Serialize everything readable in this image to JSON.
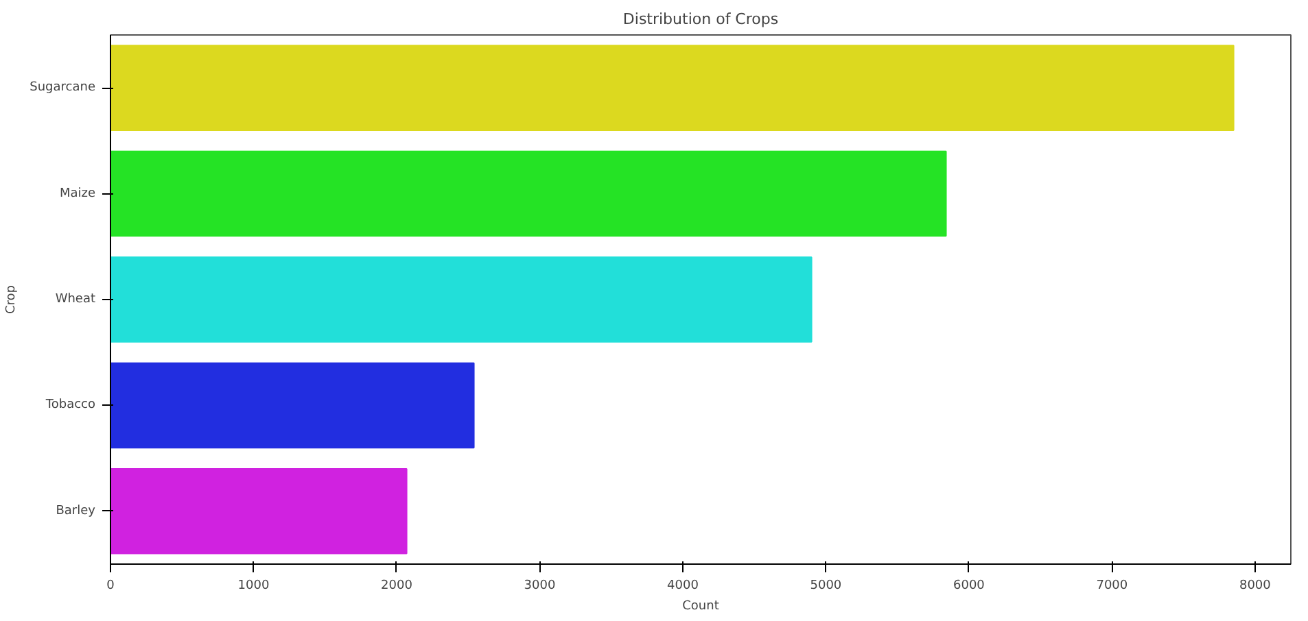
{
  "chart_data": {
    "type": "bar",
    "orientation": "horizontal",
    "title": "Distribution of Crops",
    "xlabel": "Count",
    "ylabel": "Crop",
    "categories": [
      "Sugarcane",
      "Maize",
      "Wheat",
      "Tobacco",
      "Barley"
    ],
    "values": [
      7850,
      5840,
      4900,
      2540,
      2070
    ],
    "colors": [
      "#dcd91f",
      "#25e325",
      "#22dfd9",
      "#222ee0",
      "#d022e0"
    ],
    "xlim": [
      0,
      8250
    ],
    "xticks": [
      0,
      1000,
      2000,
      3000,
      4000,
      5000,
      6000,
      7000,
      8000
    ],
    "grid": false
  }
}
